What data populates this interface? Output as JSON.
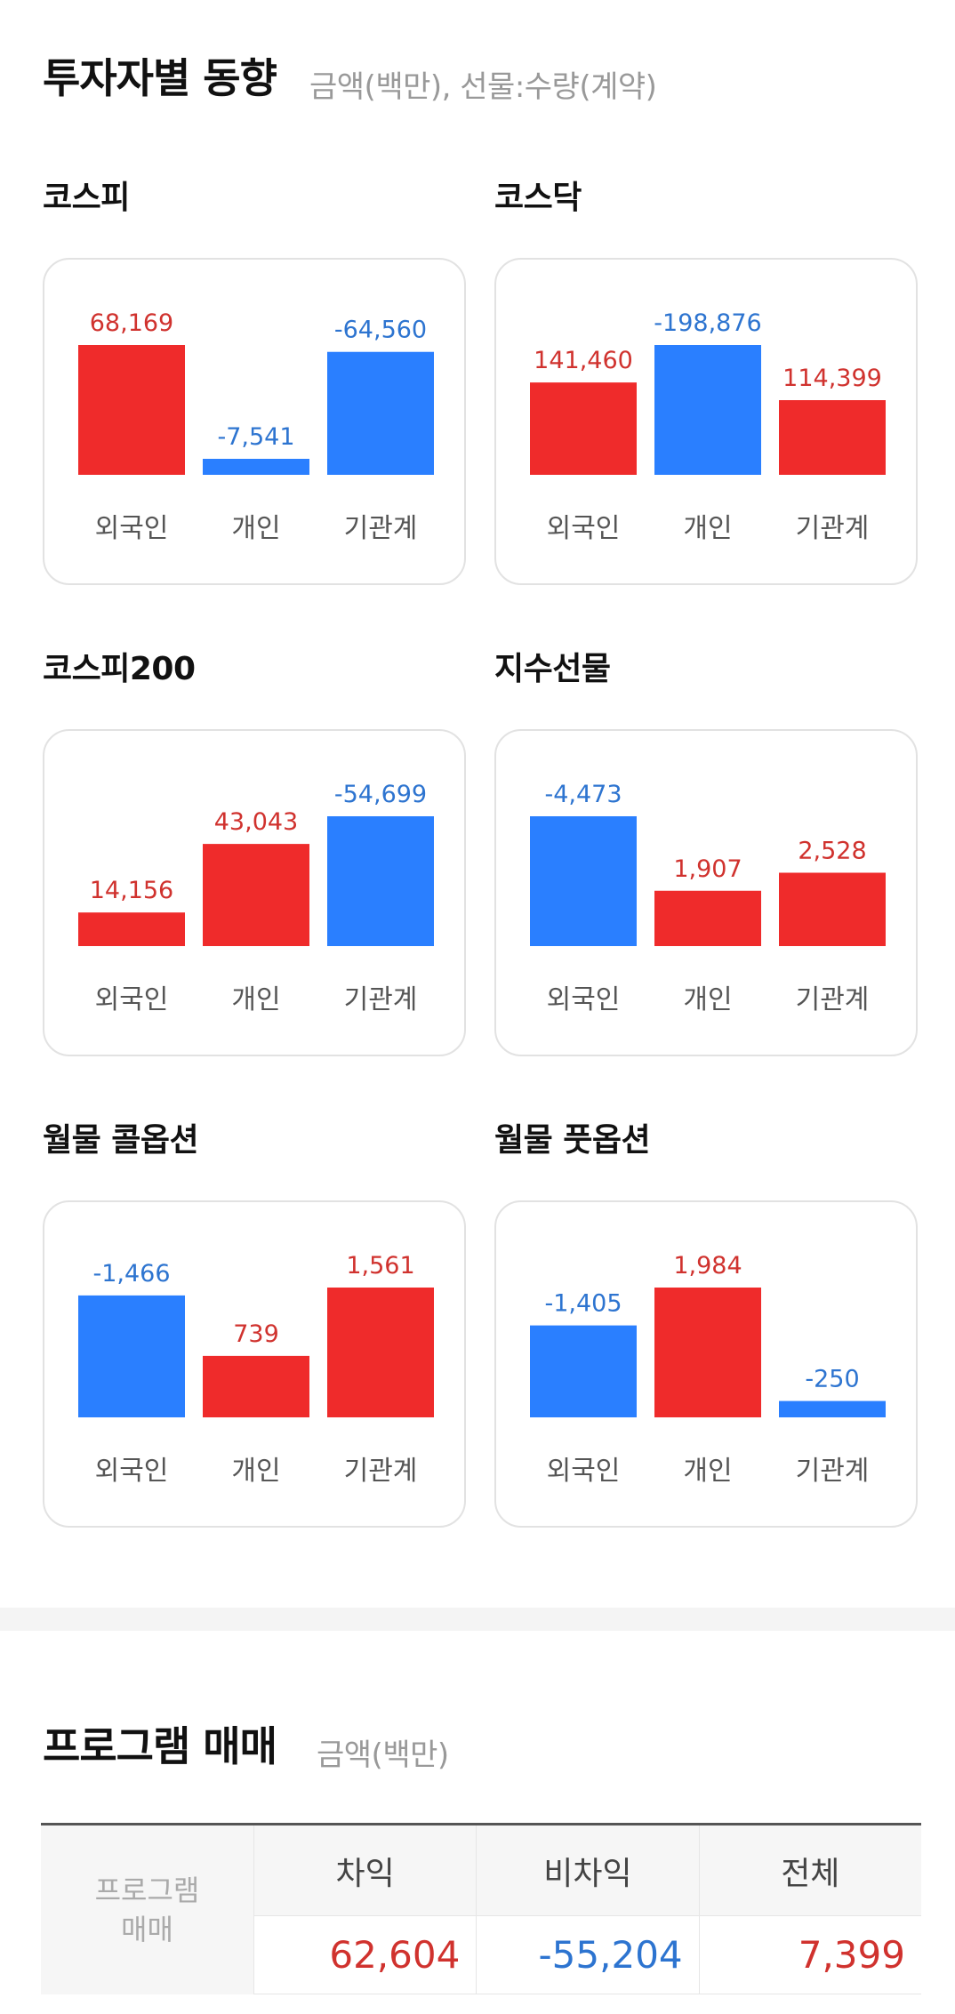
{
  "investor": {
    "title": "투자자별 동향",
    "subtitle": "금액(백만), 선물:수량(계약)"
  },
  "colors": {
    "positive": "#ef2b2b",
    "negative": "#2a7fff",
    "positive_text": "#d0322e",
    "negative_text": "#2d74d0"
  },
  "chart_data": [
    {
      "type": "bar",
      "title": "코스피",
      "categories": [
        "외국인",
        "개인",
        "기관계"
      ],
      "values": [
        68169,
        -7541,
        -64560
      ],
      "labels": [
        "68,169",
        "-7,541",
        "-64,560"
      ]
    },
    {
      "type": "bar",
      "title": "코스닥",
      "categories": [
        "외국인",
        "개인",
        "기관계"
      ],
      "values": [
        141460,
        -198876,
        114399
      ],
      "labels": [
        "141,460",
        "-198,876",
        "114,399"
      ]
    },
    {
      "type": "bar",
      "title": "코스피200",
      "categories": [
        "외국인",
        "개인",
        "기관계"
      ],
      "values": [
        14156,
        43043,
        -54699
      ],
      "labels": [
        "14,156",
        "43,043",
        "-54,699"
      ]
    },
    {
      "type": "bar",
      "title": "지수선물",
      "categories": [
        "외국인",
        "개인",
        "기관계"
      ],
      "values": [
        -4473,
        1907,
        2528
      ],
      "labels": [
        "-4,473",
        "1,907",
        "2,528"
      ]
    },
    {
      "type": "bar",
      "title": "월물 콜옵션",
      "categories": [
        "외국인",
        "개인",
        "기관계"
      ],
      "values": [
        -1466,
        739,
        1561
      ],
      "labels": [
        "-1,466",
        "739",
        "1,561"
      ]
    },
    {
      "type": "bar",
      "title": "월물 풋옵션",
      "categories": [
        "외국인",
        "개인",
        "기관계"
      ],
      "values": [
        -1405,
        1984,
        -250
      ],
      "labels": [
        "-1,405",
        "1,984",
        "-250"
      ]
    }
  ],
  "program": {
    "title": "프로그램 매매",
    "subtitle": "금액(백만)",
    "row_label_line1": "프로그램",
    "row_label_line2": "매매",
    "headers": [
      "차익",
      "비차익",
      "전체"
    ],
    "values": [
      "62,604",
      "-55,204",
      "7,399"
    ],
    "signs": [
      "positive",
      "negative",
      "positive"
    ]
  }
}
